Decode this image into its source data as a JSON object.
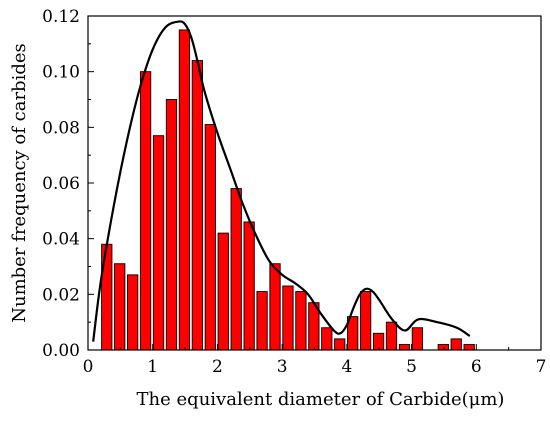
{
  "chart_data": {
    "type": "bar",
    "xlabel": "The equivalent diameter of Carbide(μm)",
    "ylabel": "Number frequency of carbides",
    "xlim": [
      0,
      7
    ],
    "ylim": [
      0,
      0.12
    ],
    "xticks": [
      0,
      1,
      2,
      3,
      4,
      5,
      6,
      7
    ],
    "yticks": [
      0.0,
      0.02,
      0.04,
      0.06,
      0.08,
      0.1,
      0.12
    ],
    "xtick_labels": [
      "0",
      "1",
      "2",
      "3",
      "4",
      "5",
      "6",
      "7"
    ],
    "ytick_labels": [
      "0.00",
      "0.02",
      "0.04",
      "0.06",
      "0.08",
      "0.10",
      "0.12"
    ],
    "bar_color": "#ff0000",
    "bar_width": 0.16,
    "bars": {
      "x": [
        0.29,
        0.49,
        0.69,
        0.89,
        1.09,
        1.29,
        1.49,
        1.69,
        1.89,
        2.09,
        2.29,
        2.49,
        2.69,
        2.89,
        3.09,
        3.29,
        3.49,
        3.69,
        3.89,
        4.09,
        4.29,
        4.49,
        4.69,
        4.89,
        5.09,
        5.49,
        5.69,
        5.89
      ],
      "values": [
        0.038,
        0.031,
        0.027,
        0.1,
        0.077,
        0.09,
        0.115,
        0.104,
        0.081,
        0.042,
        0.058,
        0.046,
        0.021,
        0.031,
        0.023,
        0.021,
        0.017,
        0.008,
        0.004,
        0.012,
        0.021,
        0.006,
        0.01,
        0.002,
        0.008,
        0.002,
        0.004,
        0.002
      ]
    },
    "fit_curve": {
      "color": "#000000",
      "x": [
        0.08,
        0.2,
        0.4,
        0.6,
        0.8,
        1.0,
        1.2,
        1.4,
        1.5,
        1.6,
        1.7,
        1.8,
        2.0,
        2.2,
        2.4,
        2.6,
        2.8,
        3.0,
        3.2,
        3.4,
        3.6,
        3.8,
        3.9,
        4.0,
        4.1,
        4.2,
        4.3,
        4.4,
        4.5,
        4.7,
        4.9,
        5.1,
        5.4,
        5.7,
        5.9
      ],
      "y": [
        0.003,
        0.025,
        0.052,
        0.075,
        0.094,
        0.108,
        0.116,
        0.118,
        0.117,
        0.112,
        0.103,
        0.093,
        0.078,
        0.065,
        0.052,
        0.041,
        0.032,
        0.027,
        0.024,
        0.02,
        0.013,
        0.007,
        0.006,
        0.009,
        0.015,
        0.02,
        0.022,
        0.021,
        0.018,
        0.011,
        0.007,
        0.011,
        0.01,
        0.008,
        0.005
      ]
    }
  }
}
